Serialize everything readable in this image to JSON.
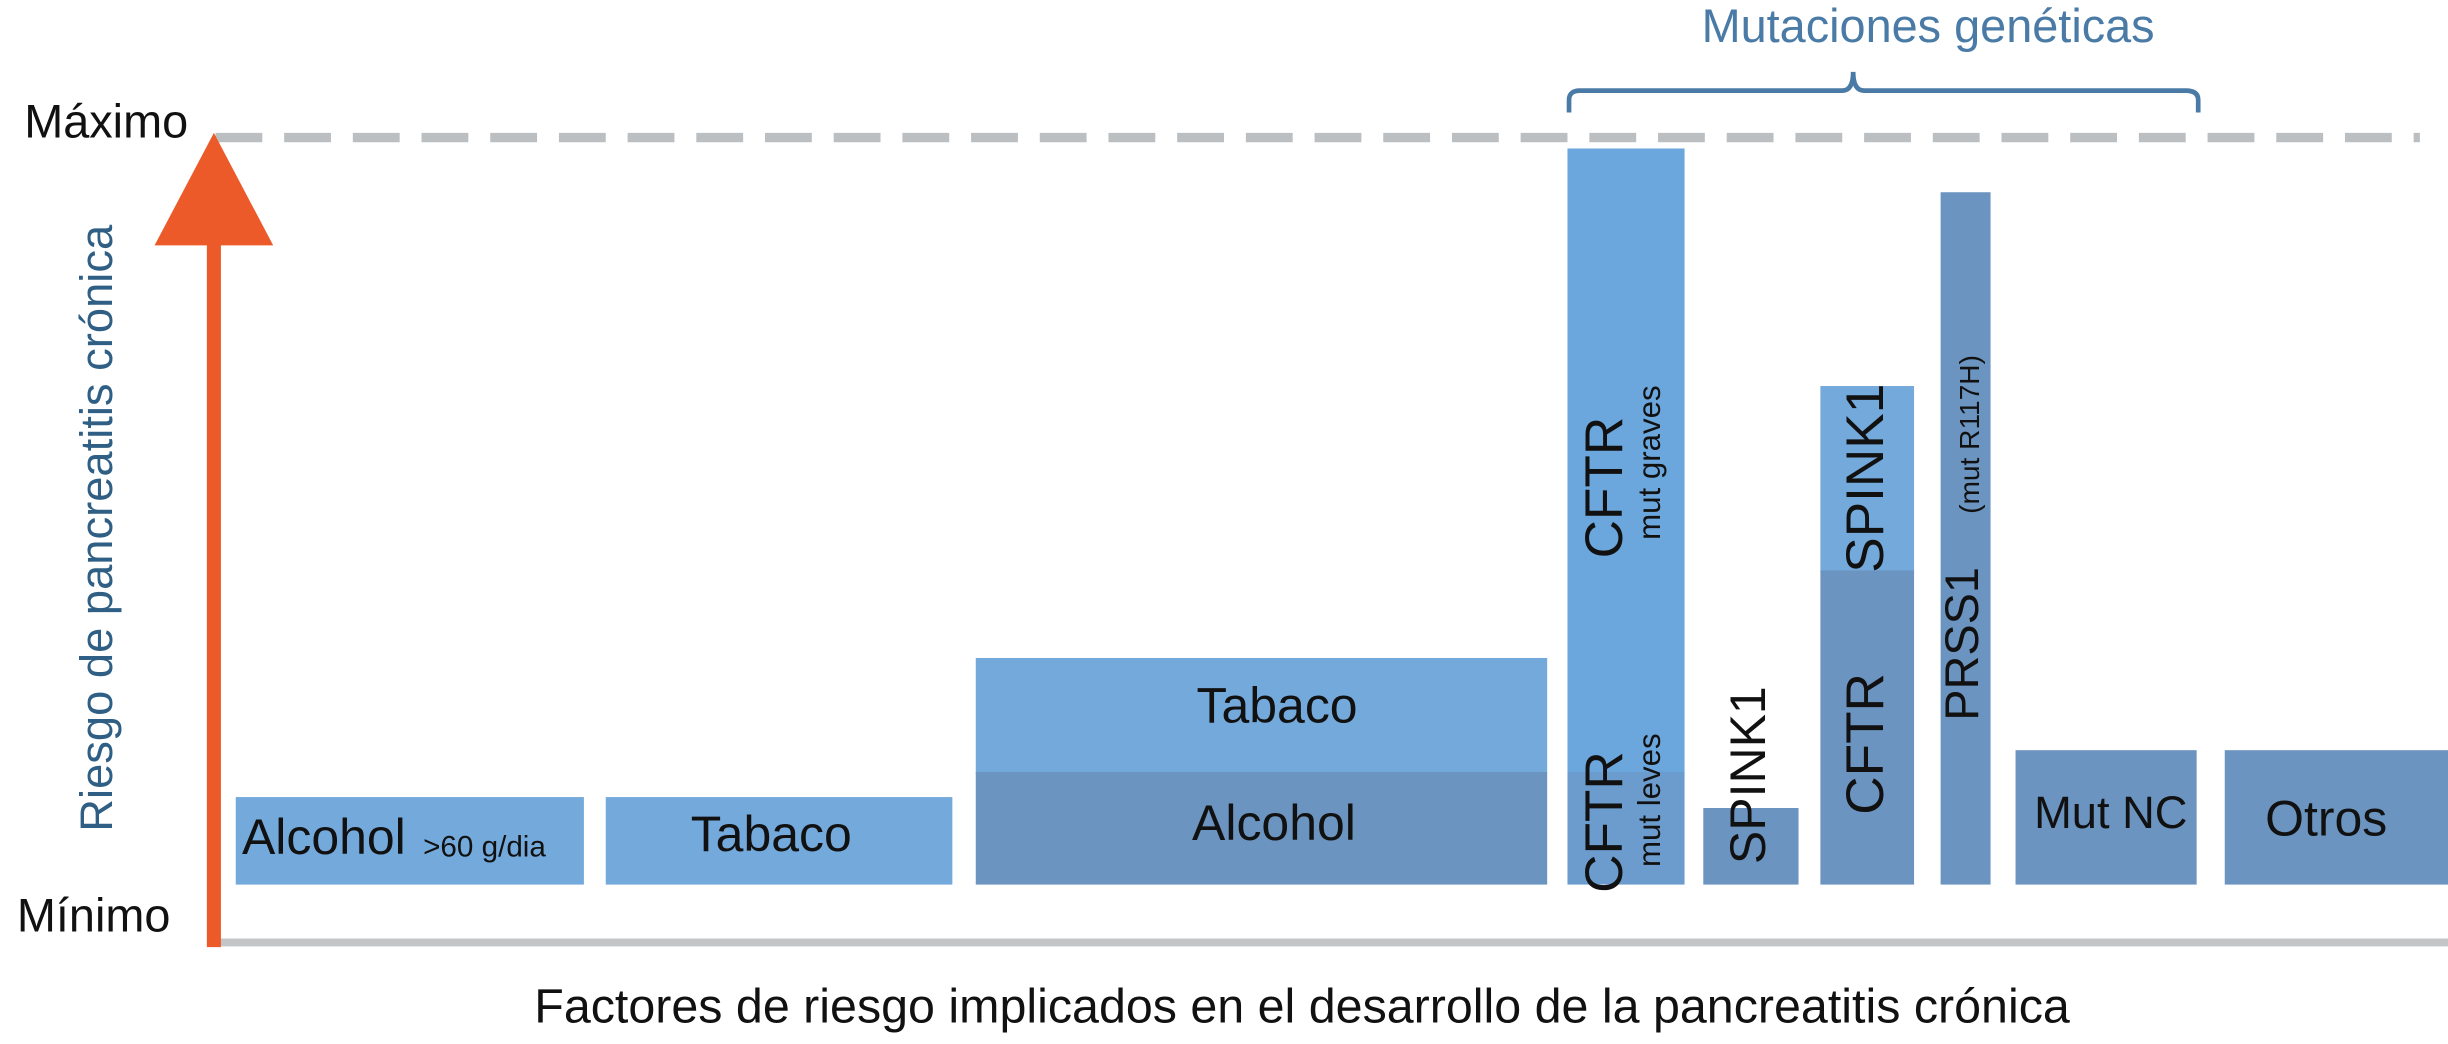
{
  "axis": {
    "max_label": "Máximo",
    "min_label": "Mínimo",
    "y_title": "Riesgo  de pancreatitis crónica",
    "x_title": "Factores  de riesgo implicados  en el  desarrollo  de la pancreatitis crónica"
  },
  "group_label": "Mutaciones genéticas",
  "blocks": [
    {
      "label": "Alcohol",
      "note": ">60 g/dia"
    },
    {
      "label": "Tabaco"
    },
    {
      "top": "Tabaco",
      "bottom": "Alcohol"
    },
    {
      "top": "CFTR",
      "top_note": "mut graves",
      "bottom": "CFTR",
      "bottom_note": "mut leves"
    },
    {
      "label": "SPINK1"
    },
    {
      "top": "SPINK1",
      "bottom": "CFTR"
    },
    {
      "label": "PRSS1",
      "note": "(mut R117H)"
    },
    {
      "label": "Mut NC"
    },
    {
      "label": "Otros"
    }
  ]
}
